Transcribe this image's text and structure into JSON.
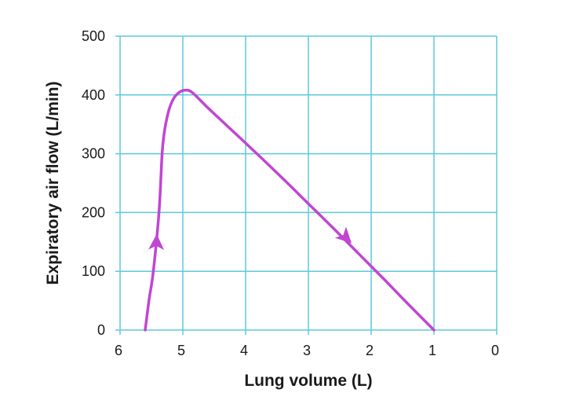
{
  "chart_data": {
    "type": "line",
    "title": "",
    "xlabel": "Lung volume (L)",
    "ylabel": "Expiratory air flow (L/min)",
    "xlim": [
      6,
      0
    ],
    "ylim": [
      0,
      500
    ],
    "x_ticks": [
      6,
      5,
      4,
      3,
      2,
      1,
      0
    ],
    "y_ticks": [
      0,
      100,
      200,
      300,
      400,
      500
    ],
    "x_tick_labels": [
      "6",
      "5",
      "4",
      "3",
      "2",
      "1",
      "0"
    ],
    "y_tick_labels": [
      "0",
      "100",
      "200",
      "300",
      "400",
      "500"
    ],
    "x_axis_reversed": true,
    "grid": true,
    "colors": {
      "grid": "#5ec8dd",
      "curve": "#c145d3",
      "text": "#1a1a1a"
    },
    "series": [
      {
        "x": [
          5.6,
          5.54,
          5.47,
          5.38,
          5.33,
          5.29,
          5.22,
          5.14,
          5.05,
          4.95,
          4.85,
          4.6,
          4.2,
          3.8,
          3.4,
          3.0,
          2.6,
          2.2,
          1.8,
          1.4,
          1.0
        ],
        "y": [
          0,
          50,
          100,
          200,
          300,
          340,
          375,
          395,
          405,
          408,
          404,
          378,
          338,
          298,
          257,
          215,
          173,
          130,
          87,
          43,
          0
        ]
      }
    ],
    "annotations": [
      {
        "type": "arrow",
        "x": 5.42,
        "y": 150,
        "direction": "up"
      },
      {
        "type": "arrow",
        "x": 2.4,
        "y": 157,
        "direction": "down-right"
      }
    ]
  }
}
